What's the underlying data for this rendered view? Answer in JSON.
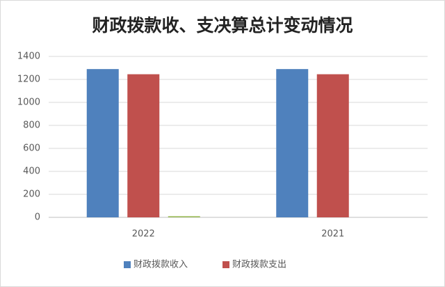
{
  "chart_data": {
    "type": "bar",
    "title": "财政拨款收、支决算总计变动情况",
    "categories": [
      "2022",
      "2021"
    ],
    "series": [
      {
        "name": "财政拨款收入",
        "color": "#4f81bd",
        "values": [
          1290,
          1290
        ]
      },
      {
        "name": "财政拨款支出",
        "color": "#c0504d",
        "values": [
          1245,
          1245
        ]
      },
      {
        "color": "#9bbb59",
        "values": [
          10,
          null
        ]
      }
    ],
    "ylim": [
      0,
      1400
    ],
    "yticks": [
      0,
      200,
      400,
      600,
      800,
      1000,
      1200,
      1400
    ],
    "grid": true,
    "legend": "bottom"
  }
}
